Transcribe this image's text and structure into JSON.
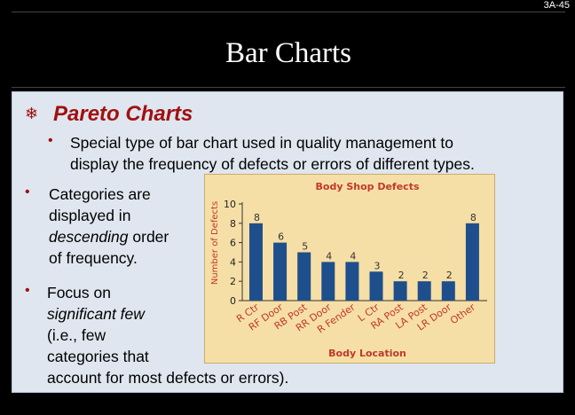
{
  "slide_number": "3A-45",
  "title": "Bar Charts",
  "heading": "Pareto Charts",
  "bullet1_line1": "Special type of bar chart used in quality management to",
  "bullet1_line2": "display the frequency of defects or errors of different types.",
  "bullet2_line1": "Categories are",
  "bullet2_line2": "displayed in",
  "bullet2_line3_em": "descending",
  "bullet2_line3_rest": " order",
  "bullet2_line4": "of frequency.",
  "bullet3_line1": "Focus on",
  "bullet3_line2": "significant few",
  "bullet3_line3": "(i.e., few",
  "bullet3_line4": "categories that",
  "bullet3_line5": "account for most defects or errors).",
  "bullet_glyph": "•",
  "colors": {
    "heading": "#a01010",
    "chart_title": "#c0392b",
    "bar": "#1f4e8c",
    "chart_bg": "#f6dfa6"
  },
  "chart_data": {
    "type": "bar",
    "title": "Body Shop Defects",
    "xlabel": "Body Location",
    "ylabel": "Number of Defects",
    "categories": [
      "R Ctr",
      "RF Door",
      "RB Post",
      "RR Door",
      "R Fender",
      "L Ctr",
      "RA Post",
      "LA Post",
      "LR Door",
      "Other"
    ],
    "values": [
      8,
      6,
      5,
      4,
      4,
      3,
      2,
      2,
      2,
      8
    ],
    "ylim": [
      0,
      10
    ],
    "yticks": [
      0,
      2,
      4,
      6,
      8,
      10
    ]
  }
}
